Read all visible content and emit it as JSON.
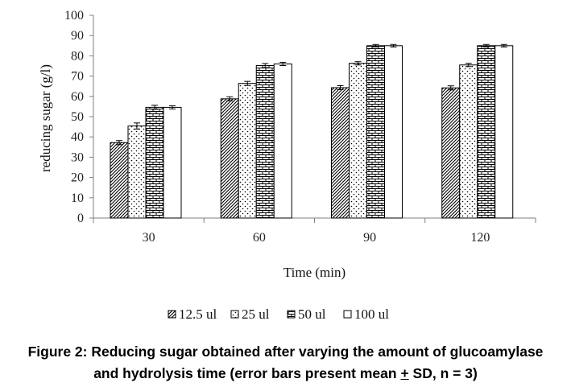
{
  "chart_data": {
    "type": "bar",
    "xlabel": "Time (min)",
    "ylabel": "reducing sugar (g/l)",
    "ylim": [
      0,
      100
    ],
    "yticks": [
      0,
      10,
      20,
      30,
      40,
      50,
      60,
      70,
      80,
      90,
      100
    ],
    "categories": [
      "30",
      "60",
      "90",
      "120"
    ],
    "series": [
      {
        "name": "12.5 ul",
        "values": [
          37.2,
          58.8,
          64.3,
          64.2
        ],
        "errors": [
          1.0,
          1.0,
          1.0,
          1.0
        ],
        "pattern": "diagonal"
      },
      {
        "name": "25 ul",
        "values": [
          45.4,
          66.4,
          76.3,
          75.5
        ],
        "errors": [
          1.5,
          1.0,
          0.8,
          0.8
        ],
        "pattern": "dots"
      },
      {
        "name": "50 ul",
        "values": [
          54.6,
          75.2,
          85.0,
          85.0
        ],
        "errors": [
          1.0,
          1.0,
          0.6,
          0.6
        ],
        "pattern": "brick"
      },
      {
        "name": "100 ul",
        "values": [
          54.6,
          76.0,
          85.0,
          85.0
        ],
        "errors": [
          0.8,
          0.8,
          0.6,
          0.6
        ],
        "pattern": "none"
      }
    ],
    "grid": false,
    "legend_position": "bottom"
  },
  "caption": {
    "line1": "Figure 2: Reducing sugar obtained after varying the amount of glucoamylase",
    "line2_before": "and hydrolysis time (error bars present mean ",
    "line2_pm": "+",
    "line2_after": " SD, n = 3)"
  }
}
